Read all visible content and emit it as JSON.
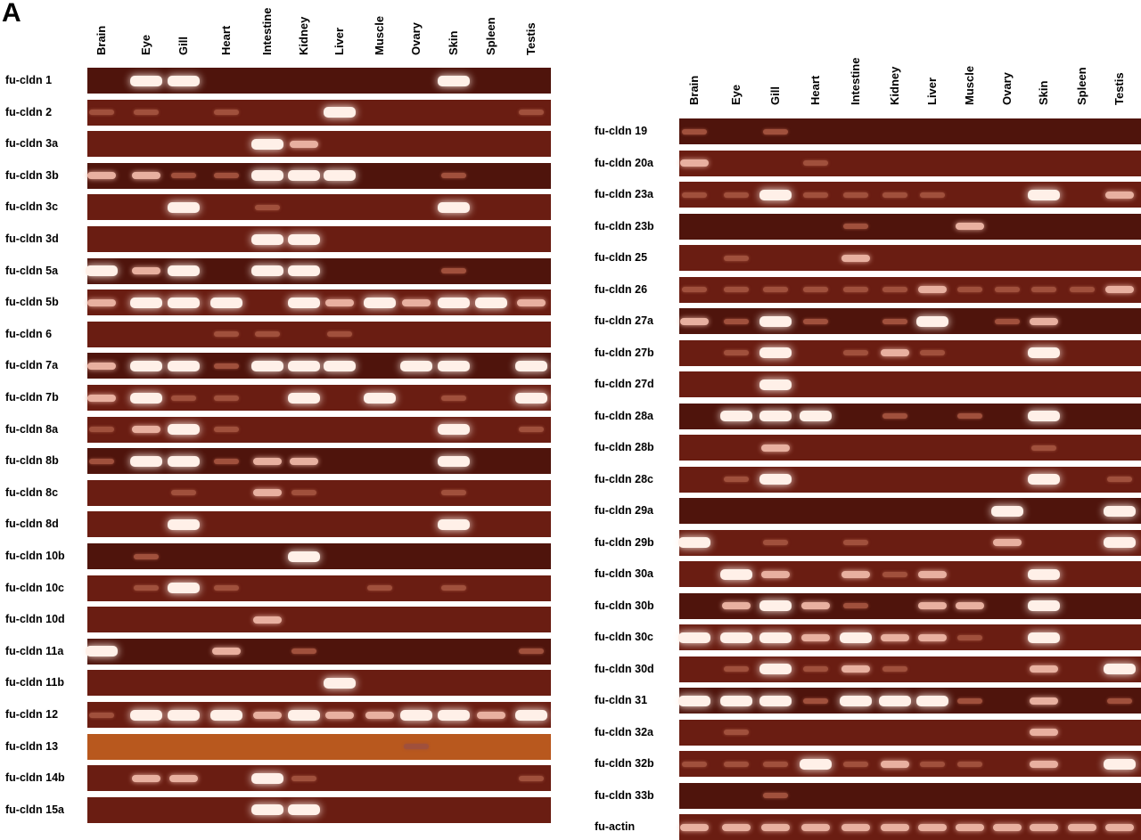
{
  "panel_label": "A",
  "colors": {
    "gel": "#6a1d12",
    "gel_dark": "#4f140c",
    "gel_orange": "#b8581e",
    "band": "#fff0e8",
    "band_mid": "#e8b0a0",
    "band_faint": "#a0503c"
  },
  "left_panel": {
    "columns": [
      "Brain",
      "Eye",
      "Gill",
      "Heart",
      "Intestine",
      "Kidney",
      "Liver",
      "Muscle",
      "Ovary",
      "Skin",
      "Spleen",
      "Testis"
    ],
    "rows": [
      {
        "label": "fu-cldn 1",
        "bands": [
          0,
          3,
          3,
          0,
          0,
          0,
          0,
          0,
          0,
          3,
          0,
          0
        ]
      },
      {
        "label": "fu-cldn 2",
        "bands": [
          1,
          1,
          0,
          1,
          0,
          0,
          3,
          0,
          0,
          0,
          0,
          1
        ]
      },
      {
        "label": "fu-cldn 3a",
        "bands": [
          0,
          0,
          0,
          0,
          3,
          2,
          0,
          0,
          0,
          0,
          0,
          0
        ]
      },
      {
        "label": "fu-cldn 3b",
        "bands": [
          2,
          2,
          1,
          1,
          3,
          3,
          3,
          0,
          0,
          1,
          0,
          0
        ]
      },
      {
        "label": "fu-cldn 3c",
        "bands": [
          0,
          0,
          3,
          0,
          1,
          0,
          0,
          0,
          0,
          3,
          0,
          0
        ]
      },
      {
        "label": "fu-cldn 3d",
        "bands": [
          0,
          0,
          0,
          0,
          3,
          3,
          0,
          0,
          0,
          0,
          0,
          0
        ]
      },
      {
        "label": "fu-cldn 5a",
        "bands": [
          3,
          2,
          3,
          0,
          3,
          3,
          0,
          0,
          0,
          1,
          0,
          0
        ]
      },
      {
        "label": "fu-cldn 5b",
        "bands": [
          2,
          3,
          3,
          3,
          0,
          3,
          2,
          3,
          2,
          3,
          3,
          2
        ]
      },
      {
        "label": "fu-cldn 6",
        "bands": [
          0,
          0,
          0,
          1,
          1,
          0,
          1,
          0,
          0,
          0,
          0,
          0
        ]
      },
      {
        "label": "fu-cldn 7a",
        "bands": [
          2,
          3,
          3,
          1,
          3,
          3,
          3,
          0,
          3,
          3,
          0,
          3
        ]
      },
      {
        "label": "fu-cldn 7b",
        "bands": [
          2,
          3,
          1,
          1,
          0,
          3,
          0,
          3,
          0,
          1,
          0,
          3
        ]
      },
      {
        "label": "fu-cldn 8a",
        "bands": [
          1,
          2,
          3,
          1,
          0,
          0,
          0,
          0,
          0,
          3,
          0,
          1
        ]
      },
      {
        "label": "fu-cldn 8b",
        "bands": [
          1,
          3,
          3,
          1,
          2,
          2,
          0,
          0,
          0,
          3,
          0,
          0
        ]
      },
      {
        "label": "fu-cldn 8c",
        "bands": [
          0,
          0,
          1,
          0,
          2,
          1,
          0,
          0,
          0,
          1,
          0,
          0
        ]
      },
      {
        "label": "fu-cldn 8d",
        "bands": [
          0,
          0,
          3,
          0,
          0,
          0,
          0,
          0,
          0,
          3,
          0,
          0
        ]
      },
      {
        "label": "fu-cldn 10b",
        "bands": [
          0,
          1,
          0,
          0,
          0,
          3,
          0,
          0,
          0,
          0,
          0,
          0
        ]
      },
      {
        "label": "fu-cldn 10c",
        "bands": [
          0,
          1,
          3,
          1,
          0,
          0,
          0,
          1,
          0,
          1,
          0,
          0
        ]
      },
      {
        "label": "fu-cldn 10d",
        "bands": [
          0,
          0,
          0,
          0,
          2,
          0,
          0,
          0,
          0,
          0,
          0,
          0
        ]
      },
      {
        "label": "fu-cldn 11a",
        "bands": [
          3,
          0,
          0,
          2,
          0,
          1,
          0,
          0,
          0,
          0,
          0,
          1
        ]
      },
      {
        "label": "fu-cldn 11b",
        "bands": [
          0,
          0,
          0,
          0,
          0,
          0,
          3,
          0,
          0,
          0,
          0,
          0
        ]
      },
      {
        "label": "fu-cldn 12",
        "bands": [
          1,
          3,
          3,
          3,
          2,
          3,
          2,
          2,
          3,
          3,
          2,
          3
        ]
      },
      {
        "label": "fu-cldn 13",
        "bands": [
          0,
          0,
          0,
          0,
          0,
          0,
          0,
          0,
          1,
          0,
          0,
          0
        ]
      },
      {
        "label": "fu-cldn 14b",
        "bands": [
          0,
          2,
          2,
          0,
          3,
          1,
          0,
          0,
          0,
          0,
          0,
          1
        ]
      },
      {
        "label": "fu-cldn 15a",
        "bands": [
          0,
          0,
          0,
          0,
          3,
          3,
          0,
          0,
          0,
          0,
          0,
          0
        ]
      }
    ]
  },
  "right_panel": {
    "columns": [
      "Brain",
      "Eye",
      "Gill",
      "Heart",
      "Intestine",
      "Kidney",
      "Liver",
      "Muscle",
      "Ovary",
      "Skin",
      "Spleen",
      "Testis"
    ],
    "rows": [
      {
        "label": "fu-cldn 19",
        "bands": [
          1,
          0,
          1,
          0,
          0,
          0,
          0,
          0,
          0,
          0,
          0,
          0
        ]
      },
      {
        "label": "fu-cldn 20a",
        "bands": [
          2,
          0,
          0,
          1,
          0,
          0,
          0,
          0,
          0,
          0,
          0,
          0
        ]
      },
      {
        "label": "fu-cldn 23a",
        "bands": [
          1,
          1,
          3,
          1,
          1,
          1,
          1,
          0,
          0,
          3,
          0,
          2
        ]
      },
      {
        "label": "fu-cldn 23b",
        "bands": [
          0,
          0,
          0,
          0,
          1,
          0,
          0,
          2,
          0,
          0,
          0,
          0
        ]
      },
      {
        "label": "fu-cldn 25",
        "bands": [
          0,
          1,
          0,
          0,
          2,
          0,
          0,
          0,
          0,
          0,
          0,
          0
        ]
      },
      {
        "label": "fu-cldn 26",
        "bands": [
          1,
          1,
          1,
          1,
          1,
          1,
          2,
          1,
          1,
          1,
          1,
          2
        ]
      },
      {
        "label": "fu-cldn 27a",
        "bands": [
          2,
          1,
          3,
          1,
          0,
          1,
          3,
          0,
          1,
          2,
          0,
          0
        ]
      },
      {
        "label": "fu-cldn 27b",
        "bands": [
          0,
          1,
          3,
          0,
          1,
          2,
          1,
          0,
          0,
          3,
          0,
          0
        ]
      },
      {
        "label": "fu-cldn 27d",
        "bands": [
          0,
          0,
          3,
          0,
          0,
          0,
          0,
          0,
          0,
          0,
          0,
          0
        ]
      },
      {
        "label": "fu-cldn 28a",
        "bands": [
          0,
          3,
          3,
          3,
          0,
          1,
          0,
          1,
          0,
          3,
          0,
          0
        ]
      },
      {
        "label": "fu-cldn 28b",
        "bands": [
          0,
          0,
          2,
          0,
          0,
          0,
          0,
          0,
          0,
          1,
          0,
          0
        ]
      },
      {
        "label": "fu-cldn 28c",
        "bands": [
          0,
          1,
          3,
          0,
          0,
          0,
          0,
          0,
          0,
          3,
          0,
          1
        ]
      },
      {
        "label": "fu-cldn 29a",
        "bands": [
          0,
          0,
          0,
          0,
          0,
          0,
          0,
          0,
          3,
          0,
          0,
          3
        ]
      },
      {
        "label": "fu-cldn 29b",
        "bands": [
          3,
          0,
          1,
          0,
          1,
          0,
          0,
          0,
          2,
          0,
          0,
          3
        ]
      },
      {
        "label": "fu-cldn 30a",
        "bands": [
          0,
          3,
          2,
          0,
          2,
          1,
          2,
          0,
          0,
          3,
          0,
          0
        ]
      },
      {
        "label": "fu-cldn 30b",
        "bands": [
          0,
          2,
          3,
          2,
          1,
          0,
          2,
          2,
          0,
          3,
          0,
          0
        ]
      },
      {
        "label": "fu-cldn 30c",
        "bands": [
          3,
          3,
          3,
          2,
          3,
          2,
          2,
          1,
          0,
          3,
          0,
          0
        ]
      },
      {
        "label": "fu-cldn 30d",
        "bands": [
          0,
          1,
          3,
          1,
          2,
          1,
          0,
          0,
          0,
          2,
          0,
          3
        ]
      },
      {
        "label": "fu-cldn 31",
        "bands": [
          3,
          3,
          3,
          1,
          3,
          3,
          3,
          1,
          0,
          2,
          0,
          1
        ]
      },
      {
        "label": "fu-cldn 32a",
        "bands": [
          0,
          1,
          0,
          0,
          0,
          0,
          0,
          0,
          0,
          2,
          0,
          0
        ]
      },
      {
        "label": "fu-cldn 32b",
        "bands": [
          1,
          1,
          1,
          3,
          1,
          2,
          1,
          1,
          0,
          2,
          0,
          3
        ]
      },
      {
        "label": "fu-cldn 33b",
        "bands": [
          0,
          0,
          1,
          0,
          0,
          0,
          0,
          0,
          0,
          0,
          0,
          0
        ]
      },
      {
        "label": "fu-actin",
        "bands": [
          2,
          2,
          2,
          2,
          2,
          2,
          2,
          2,
          2,
          2,
          2,
          2
        ]
      }
    ]
  }
}
